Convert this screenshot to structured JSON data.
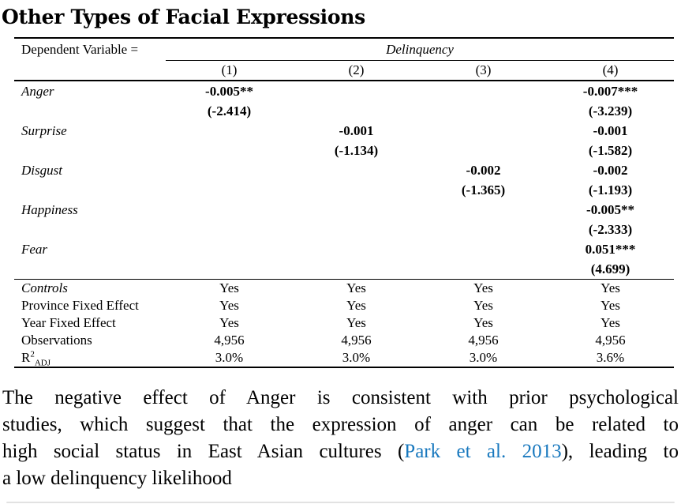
{
  "title": "Other Types of Facial Expressions",
  "colors": {
    "link_blue": "#1878be",
    "text": "#000000",
    "rule": "#000000"
  },
  "table": {
    "dep_var_label": "Dependent Variable =",
    "dep_var_value": "Delinquency",
    "col_headers": [
      "(1)",
      "(2)",
      "(3)",
      "(4)"
    ],
    "body": [
      {
        "label": "Anger",
        "c1": "-0.005**",
        "c2": "",
        "c3": "",
        "c4": "-0.007***"
      },
      {
        "label": "",
        "c1": "(-2.414)",
        "c2": "",
        "c3": "",
        "c4": "(-3.239)"
      },
      {
        "label": "Surprise",
        "c1": "",
        "c2": "-0.001",
        "c3": "",
        "c4": "-0.001"
      },
      {
        "label": "",
        "c1": "",
        "c2": "(-1.134)",
        "c3": "",
        "c4": "(-1.582)"
      },
      {
        "label": "Disgust",
        "c1": "",
        "c2": "",
        "c3": "-0.002",
        "c4": "-0.002"
      },
      {
        "label": "",
        "c1": "",
        "c2": "",
        "c3": "(-1.365)",
        "c4": "(-1.193)"
      },
      {
        "label": "Happiness",
        "c1": "",
        "c2": "",
        "c3": "",
        "c4": "-0.005**"
      },
      {
        "label": "",
        "c1": "",
        "c2": "",
        "c3": "",
        "c4": "(-2.333)"
      },
      {
        "label": "Fear",
        "c1": "",
        "c2": "",
        "c3": "",
        "c4": "0.051***"
      },
      {
        "label": "",
        "c1": "",
        "c2": "",
        "c3": "",
        "c4": "(4.699)"
      }
    ],
    "footer": [
      {
        "label": "Controls",
        "c1": "Yes",
        "c2": "Yes",
        "c3": "Yes",
        "c4": "Yes"
      },
      {
        "label": "Province Fixed Effect",
        "c1": "Yes",
        "c2": "Yes",
        "c3": "Yes",
        "c4": "Yes"
      },
      {
        "label": "Year Fixed Effect",
        "c1": "Yes",
        "c2": "Yes",
        "c3": "Yes",
        "c4": "Yes"
      },
      {
        "label": "Observations",
        "c1": "4,956",
        "c2": "4,956",
        "c3": "4,956",
        "c4": "4,956"
      },
      {
        "r2_base": "R",
        "r2_sup": "2",
        "r2_sub": "ADJ",
        "c1": "3.0%",
        "c2": "3.0%",
        "c3": "3.0%",
        "c4": "3.6%"
      }
    ]
  },
  "caption": {
    "line1": "The negative effect of Anger is consistent with prior psychological",
    "line2": "studies, which suggest that the expression of anger can be related to",
    "line3_before": "high social status in East Asian cultures (",
    "link_text": "Park et al. 2013",
    "line3_after": "), leading to",
    "line4": "a low delinquency likelihood"
  }
}
